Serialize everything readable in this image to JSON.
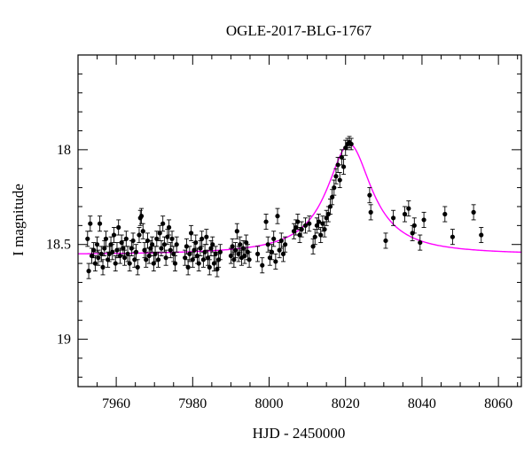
{
  "chart_data": {
    "type": "scatter",
    "title": "OGLE-2017-BLG-1767",
    "xlabel": "HJD - 2450000",
    "ylabel": "I magnitude",
    "xlim": [
      7950,
      8066
    ],
    "ylim": [
      19.25,
      17.5
    ],
    "y_inverted": true,
    "x_ticks": [
      7960,
      7980,
      8000,
      8020,
      8040,
      8060
    ],
    "x_tick_labels": [
      "7960",
      "7980",
      "8000",
      "8020",
      "8040",
      "8060"
    ],
    "y_ticks": [
      18,
      18.5,
      19
    ],
    "y_tick_labels": [
      "18",
      "18.5",
      "19"
    ],
    "grid": false,
    "legend": "none",
    "marker_color": "#000000",
    "model_color": "#ff00ff",
    "series": [
      {
        "kind": "points_with_errorbars",
        "points": [
          [
            7952.5,
            18.47,
            0.04
          ],
          [
            7952.8,
            18.64,
            0.04
          ],
          [
            7953.2,
            18.39,
            0.04
          ],
          [
            7953.6,
            18.56,
            0.04
          ],
          [
            7954.1,
            18.53,
            0.04
          ],
          [
            7954.5,
            18.6,
            0.04
          ],
          [
            7955.0,
            18.5,
            0.04
          ],
          [
            7955.3,
            18.57,
            0.04
          ],
          [
            7955.7,
            18.39,
            0.04
          ],
          [
            7956.1,
            18.55,
            0.04
          ],
          [
            7956.5,
            18.62,
            0.04
          ],
          [
            7956.9,
            18.52,
            0.04
          ],
          [
            7957.3,
            18.47,
            0.04
          ],
          [
            7957.8,
            18.58,
            0.04
          ],
          [
            7958.2,
            18.55,
            0.04
          ],
          [
            7958.6,
            18.5,
            0.04
          ],
          [
            7959.0,
            18.54,
            0.04
          ],
          [
            7959.4,
            18.45,
            0.04
          ],
          [
            7959.8,
            18.6,
            0.04
          ],
          [
            7960.2,
            18.53,
            0.04
          ],
          [
            7960.6,
            18.41,
            0.04
          ],
          [
            7961.0,
            18.56,
            0.04
          ],
          [
            7961.4,
            18.49,
            0.04
          ],
          [
            7961.8,
            18.52,
            0.04
          ],
          [
            7962.2,
            18.57,
            0.04
          ],
          [
            7962.6,
            18.47,
            0.04
          ],
          [
            7963.0,
            18.55,
            0.04
          ],
          [
            7963.5,
            18.6,
            0.04
          ],
          [
            7964.0,
            18.52,
            0.04
          ],
          [
            7964.4,
            18.48,
            0.04
          ],
          [
            7964.8,
            18.58,
            0.04
          ],
          [
            7965.2,
            18.54,
            0.04
          ],
          [
            7965.6,
            18.62,
            0.04
          ],
          [
            7966.0,
            18.45,
            0.04
          ],
          [
            7966.3,
            18.36,
            0.04
          ],
          [
            7966.6,
            18.35,
            0.04
          ],
          [
            7967.0,
            18.43,
            0.04
          ],
          [
            7967.4,
            18.53,
            0.04
          ],
          [
            7967.8,
            18.58,
            0.04
          ],
          [
            7968.2,
            18.48,
            0.04
          ],
          [
            7968.6,
            18.56,
            0.04
          ],
          [
            7969.0,
            18.52,
            0.04
          ],
          [
            7969.4,
            18.5,
            0.04
          ],
          [
            7969.8,
            18.6,
            0.04
          ],
          [
            7970.2,
            18.55,
            0.04
          ],
          [
            7970.6,
            18.47,
            0.04
          ],
          [
            7971.0,
            18.58,
            0.04
          ],
          [
            7971.4,
            18.44,
            0.04
          ],
          [
            7971.8,
            18.52,
            0.04
          ],
          [
            7972.2,
            18.39,
            0.04
          ],
          [
            7972.6,
            18.5,
            0.04
          ],
          [
            7973.0,
            18.57,
            0.04
          ],
          [
            7973.4,
            18.46,
            0.04
          ],
          [
            7973.8,
            18.41,
            0.04
          ],
          [
            7974.2,
            18.53,
            0.04
          ],
          [
            7974.6,
            18.47,
            0.04
          ],
          [
            7975.0,
            18.55,
            0.04
          ],
          [
            7975.4,
            18.6,
            0.04
          ],
          [
            7975.8,
            18.5,
            0.04
          ],
          [
            7978.0,
            18.57,
            0.04
          ],
          [
            7978.4,
            18.51,
            0.04
          ],
          [
            7978.8,
            18.62,
            0.04
          ],
          [
            7979.2,
            18.55,
            0.04
          ],
          [
            7979.6,
            18.44,
            0.04
          ],
          [
            7980.0,
            18.58,
            0.04
          ],
          [
            7980.4,
            18.53,
            0.04
          ],
          [
            7980.8,
            18.49,
            0.04
          ],
          [
            7981.2,
            18.56,
            0.04
          ],
          [
            7981.6,
            18.6,
            0.04
          ],
          [
            7982.0,
            18.52,
            0.04
          ],
          [
            7982.4,
            18.47,
            0.04
          ],
          [
            7982.8,
            18.58,
            0.04
          ],
          [
            7983.2,
            18.54,
            0.04
          ],
          [
            7983.6,
            18.46,
            0.04
          ],
          [
            7984.0,
            18.57,
            0.04
          ],
          [
            7984.4,
            18.62,
            0.04
          ],
          [
            7984.8,
            18.52,
            0.04
          ],
          [
            7985.2,
            18.5,
            0.04
          ],
          [
            7985.6,
            18.6,
            0.04
          ],
          [
            7986.0,
            18.55,
            0.04
          ],
          [
            7986.4,
            18.63,
            0.04
          ],
          [
            7986.8,
            18.58,
            0.04
          ],
          [
            7987.2,
            18.54,
            0.04
          ],
          [
            7990.0,
            18.56,
            0.04
          ],
          [
            7990.4,
            18.51,
            0.04
          ],
          [
            7990.8,
            18.58,
            0.04
          ],
          [
            7991.2,
            18.53,
            0.04
          ],
          [
            7991.6,
            18.43,
            0.04
          ],
          [
            7992.0,
            18.55,
            0.04
          ],
          [
            7992.4,
            18.5,
            0.04
          ],
          [
            7992.8,
            18.57,
            0.04
          ],
          [
            7993.2,
            18.52,
            0.04
          ],
          [
            7993.6,
            18.56,
            0.04
          ],
          [
            7994.0,
            18.49,
            0.04
          ],
          [
            7994.4,
            18.54,
            0.04
          ],
          [
            7994.8,
            18.58,
            0.04
          ],
          [
            7997.0,
            18.55,
            0.04
          ],
          [
            7998.2,
            18.61,
            0.04
          ],
          [
            7999.2,
            18.38,
            0.04
          ],
          [
            7999.7,
            18.5,
            0.04
          ],
          [
            8000.2,
            18.57,
            0.04
          ],
          [
            8000.7,
            18.54,
            0.04
          ],
          [
            8001.2,
            18.47,
            0.04
          ],
          [
            8001.7,
            18.59,
            0.04
          ],
          [
            8002.2,
            18.35,
            0.04
          ],
          [
            8002.7,
            18.53,
            0.04
          ],
          [
            8003.2,
            18.48,
            0.04
          ],
          [
            8003.7,
            18.55,
            0.04
          ],
          [
            8004.2,
            18.5,
            0.04
          ],
          [
            8006.5,
            18.43,
            0.04
          ],
          [
            8007.0,
            18.41,
            0.04
          ],
          [
            8007.5,
            18.38,
            0.04
          ],
          [
            8008.0,
            18.45,
            0.04
          ],
          [
            8008.5,
            18.42,
            0.04
          ],
          [
            8009.5,
            18.4,
            0.04
          ],
          [
            8010.5,
            18.39,
            0.04
          ],
          [
            8011.5,
            18.51,
            0.04
          ],
          [
            8012.0,
            18.46,
            0.04
          ],
          [
            8012.5,
            18.4,
            0.04
          ],
          [
            8013.0,
            18.38,
            0.04
          ],
          [
            8013.5,
            18.45,
            0.04
          ],
          [
            8014.0,
            18.39,
            0.04
          ],
          [
            8014.5,
            18.42,
            0.04
          ],
          [
            8015.0,
            18.36,
            0.04
          ],
          [
            8015.5,
            18.34,
            0.04
          ],
          [
            8016.0,
            18.3,
            0.04
          ],
          [
            8016.5,
            18.25,
            0.04
          ],
          [
            8017.0,
            18.2,
            0.04
          ],
          [
            8017.5,
            18.14,
            0.04
          ],
          [
            8018.0,
            18.08,
            0.04
          ],
          [
            8018.5,
            18.16,
            0.04
          ],
          [
            8019.0,
            18.04,
            0.04
          ],
          [
            8019.5,
            18.09,
            0.04
          ],
          [
            8020.0,
            17.99,
            0.04
          ],
          [
            8020.5,
            17.97,
            0.03
          ],
          [
            8021.0,
            17.96,
            0.03
          ],
          [
            8021.5,
            17.97,
            0.03
          ],
          [
            8026.3,
            18.24,
            0.04
          ],
          [
            8026.6,
            18.33,
            0.04
          ],
          [
            8030.5,
            18.48,
            0.04
          ],
          [
            8032.5,
            18.36,
            0.04
          ],
          [
            8035.5,
            18.34,
            0.04
          ],
          [
            8036.5,
            18.31,
            0.04
          ],
          [
            8037.5,
            18.44,
            0.04
          ],
          [
            8038.0,
            18.4,
            0.04
          ],
          [
            8039.5,
            18.49,
            0.04
          ],
          [
            8040.5,
            18.37,
            0.04
          ],
          [
            8046.0,
            18.34,
            0.04
          ],
          [
            8048.0,
            18.46,
            0.04
          ],
          [
            8053.5,
            18.33,
            0.04
          ],
          [
            8055.5,
            18.45,
            0.04
          ]
        ]
      },
      {
        "kind": "model_curve",
        "baseline": 18.555,
        "peak_time": 8021.0,
        "peak_magnitude": 17.97,
        "rise_timescale": 9.0,
        "decay_timescale": 9.0
      }
    ]
  }
}
